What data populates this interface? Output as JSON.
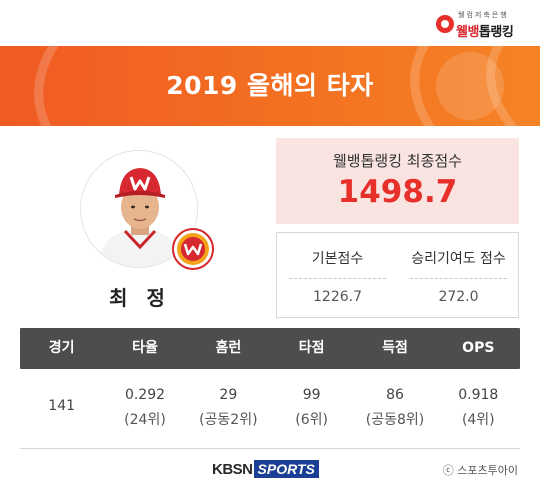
{
  "brand": {
    "tagline": "웰컴저축은행",
    "name_red": "웰뱅",
    "name_dark": "톱랭킹"
  },
  "header": {
    "title": "2019 올해의 타자"
  },
  "player": {
    "name": "최 정",
    "team_emblem_text": "SK WYVERNS"
  },
  "final_score": {
    "label": "웰뱅톱랭킹 최종점수",
    "value": "1498.7"
  },
  "sub_scores": [
    {
      "label": "기본점수",
      "value": "1226.7"
    },
    {
      "label": "승리기여도 점수",
      "value": "272.0"
    }
  ],
  "stats": {
    "headers": [
      "경기",
      "타율",
      "홈런",
      "타점",
      "득점",
      "OPS"
    ],
    "values": [
      {
        "value": "141",
        "rank": ""
      },
      {
        "value": "0.292",
        "rank": "(24위)"
      },
      {
        "value": "29",
        "rank": "(공동2위)"
      },
      {
        "value": "99",
        "rank": "(6위)"
      },
      {
        "value": "86",
        "rank": "(공동8위)"
      },
      {
        "value": "0.918",
        "rank": "(4위)"
      }
    ]
  },
  "footer": {
    "kbsn_left": "KBSN",
    "kbsn_right": "SPORTS",
    "copyright": "ⓒ 스포츠투아이"
  },
  "colors": {
    "accent_orange": "#f37021",
    "score_red": "#e8302a",
    "table_header": "#4d4d4d",
    "kbsn_blue": "#1b3f94"
  }
}
